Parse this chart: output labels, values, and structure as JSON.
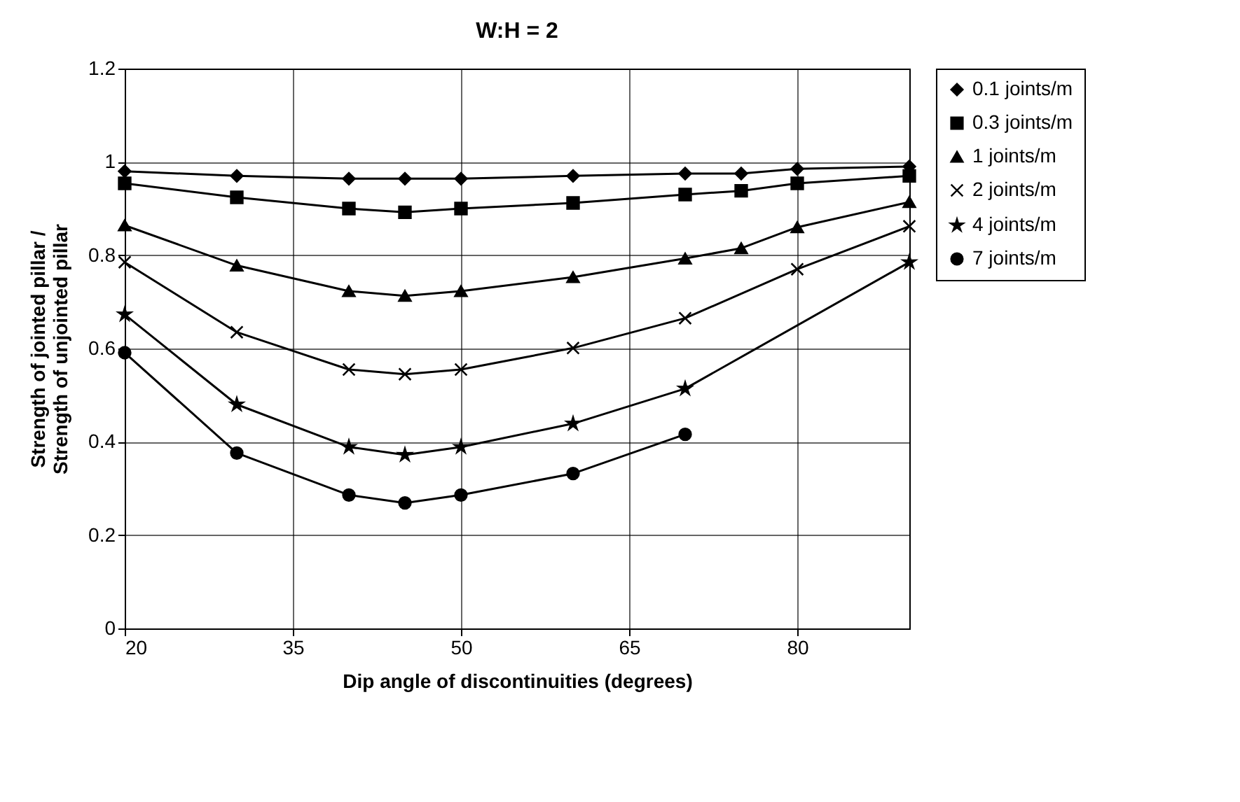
{
  "chart_data": {
    "type": "line",
    "title": "W:H = 2",
    "xlabel": "Dip angle of discontinuities (degrees)",
    "ylabel": "Strength of jointed pillar /\nStrength of unjointed pillar",
    "x": [
      20,
      30,
      40,
      45,
      50,
      60,
      70,
      75,
      80,
      90
    ],
    "series": [
      {
        "name": "0.1 joints/m",
        "color": "#000000",
        "marker": "diamond",
        "values": [
          0.98,
          0.97,
          0.964,
          0.964,
          0.964,
          0.97,
          0.975,
          0.975,
          0.985,
          0.99
        ]
      },
      {
        "name": "0.3 joints/m",
        "color": "#000000",
        "marker": "square",
        "values": [
          0.954,
          0.924,
          0.9,
          0.892,
          0.9,
          0.912,
          0.93,
          0.938,
          0.954,
          0.97
        ]
      },
      {
        "name": "1 joints/m",
        "color": "#000000",
        "marker": "triangle",
        "values": [
          0.864,
          0.778,
          0.723,
          0.713,
          0.723,
          0.753,
          0.793,
          0.815,
          0.86,
          0.914
        ]
      },
      {
        "name": "2 joints/m",
        "color": "#000000",
        "marker": "cross",
        "values": [
          0.785,
          0.635,
          0.555,
          0.545,
          0.555,
          0.601,
          0.665,
          null,
          0.77,
          0.862
        ]
      },
      {
        "name": "4 joints/m",
        "color": "#000000",
        "marker": "star",
        "values": [
          0.673,
          0.48,
          0.389,
          0.372,
          0.389,
          0.439,
          0.514,
          null,
          null,
          0.785
        ]
      },
      {
        "name": "7 joints/m",
        "color": "#000000",
        "marker": "circle",
        "values": [
          0.591,
          0.376,
          0.286,
          0.269,
          0.286,
          0.332,
          0.416,
          null,
          null,
          null
        ]
      }
    ],
    "xlim": [
      20,
      90
    ],
    "xticks": [
      20,
      35,
      50,
      65,
      80
    ],
    "ylim": [
      0,
      1.2
    ],
    "yticks": [
      0,
      0.2,
      0.4,
      0.6,
      0.8,
      1,
      1.2
    ],
    "grid": true,
    "legend": "right",
    "line_style": "solid"
  }
}
